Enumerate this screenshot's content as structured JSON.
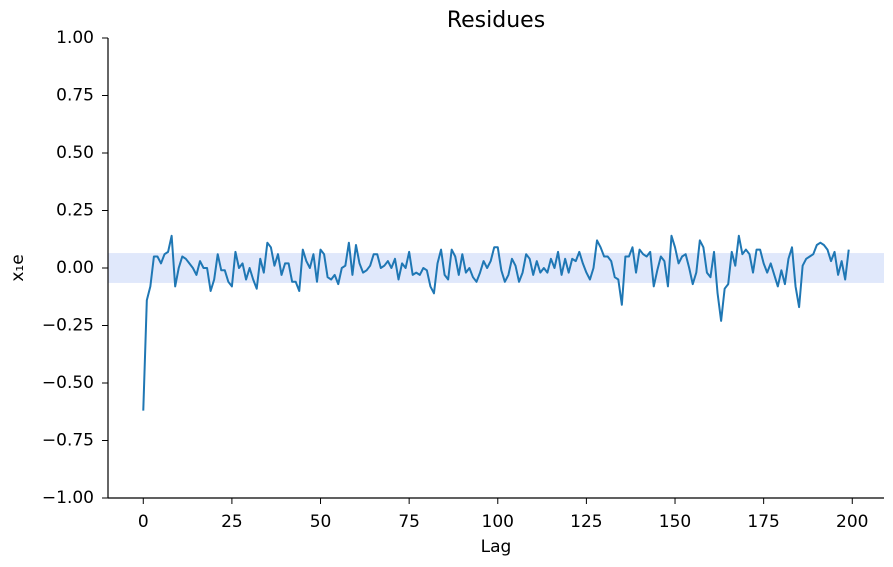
{
  "chart_data": {
    "type": "line",
    "title": "Residues",
    "xlabel": "Lag",
    "ylabel": "x₁e",
    "color": "#1f77b4",
    "band": [
      -0.065,
      0.065
    ],
    "band_color": "#e0e8fb",
    "xlim": [
      -9.95,
      208.95
    ],
    "ylim": [
      -1,
      1
    ],
    "xticks": [
      0,
      25,
      50,
      75,
      100,
      125,
      150,
      175,
      200
    ],
    "yticks": [
      {
        "value": -1,
        "label": "−1.00"
      },
      {
        "value": -0.75,
        "label": "−0.75"
      },
      {
        "value": -0.5,
        "label": "−0.50"
      },
      {
        "value": -0.25,
        "label": "−0.25"
      },
      {
        "value": 0,
        "label": "0.00"
      },
      {
        "value": 0.25,
        "label": "0.25"
      },
      {
        "value": 0.5,
        "label": "0.50"
      },
      {
        "value": 0.75,
        "label": "0.75"
      },
      {
        "value": 1,
        "label": "1.00"
      }
    ],
    "x": [
      0,
      1,
      2,
      3,
      4,
      5,
      6,
      7,
      8,
      9,
      10,
      11,
      12,
      13,
      14,
      15,
      16,
      17,
      18,
      19,
      20,
      21,
      22,
      23,
      24,
      25,
      26,
      27,
      28,
      29,
      30,
      31,
      32,
      33,
      34,
      35,
      36,
      37,
      38,
      39,
      40,
      41,
      42,
      43,
      44,
      45,
      46,
      47,
      48,
      49,
      50,
      51,
      52,
      53,
      54,
      55,
      56,
      57,
      58,
      59,
      60,
      61,
      62,
      63,
      64,
      65,
      66,
      67,
      68,
      69,
      70,
      71,
      72,
      73,
      74,
      75,
      76,
      77,
      78,
      79,
      80,
      81,
      82,
      83,
      84,
      85,
      86,
      87,
      88,
      89,
      90,
      91,
      92,
      93,
      94,
      95,
      96,
      97,
      98,
      99,
      100,
      101,
      102,
      103,
      104,
      105,
      106,
      107,
      108,
      109,
      110,
      111,
      112,
      113,
      114,
      115,
      116,
      117,
      118,
      119,
      120,
      121,
      122,
      123,
      124,
      125,
      126,
      127,
      128,
      129,
      130,
      131,
      132,
      133,
      134,
      135,
      136,
      137,
      138,
      139,
      140,
      141,
      142,
      143,
      144,
      145,
      146,
      147,
      148,
      149,
      150,
      151,
      152,
      153,
      154,
      155,
      156,
      157,
      158,
      159,
      160,
      161,
      162,
      163,
      164,
      165,
      166,
      167,
      168,
      169,
      170,
      171,
      172,
      173,
      174,
      175,
      176,
      177,
      178,
      179,
      180,
      181,
      182,
      183,
      184,
      185,
      186,
      187,
      188,
      189,
      190,
      191,
      192,
      193,
      194,
      195,
      196,
      197,
      198,
      199
    ],
    "values": [
      -0.62,
      -0.14,
      -0.08,
      0.05,
      0.05,
      0.02,
      0.06,
      0.07,
      0.14,
      -0.08,
      0.0,
      0.05,
      0.04,
      0.02,
      0.0,
      -0.03,
      0.03,
      0.0,
      0.0,
      -0.1,
      -0.05,
      0.06,
      -0.01,
      -0.01,
      -0.06,
      -0.08,
      0.07,
      0.0,
      0.02,
      -0.05,
      0.0,
      -0.05,
      -0.09,
      0.04,
      -0.02,
      0.11,
      0.09,
      0.01,
      0.06,
      -0.03,
      0.02,
      0.02,
      -0.06,
      -0.06,
      -0.1,
      0.08,
      0.03,
      0.0,
      0.06,
      -0.06,
      0.08,
      0.06,
      -0.04,
      -0.05,
      -0.03,
      -0.07,
      0.0,
      0.01,
      0.11,
      -0.03,
      0.1,
      0.02,
      -0.02,
      -0.01,
      0.01,
      0.06,
      0.06,
      0.0,
      0.01,
      0.03,
      0.0,
      0.04,
      -0.05,
      0.02,
      0.0,
      0.07,
      -0.03,
      -0.02,
      -0.03,
      0.0,
      -0.01,
      -0.08,
      -0.11,
      0.02,
      0.08,
      -0.03,
      -0.05,
      0.08,
      0.05,
      -0.03,
      0.06,
      -0.02,
      0.0,
      -0.04,
      -0.06,
      -0.02,
      0.03,
      0.0,
      0.03,
      0.09,
      0.09,
      -0.01,
      -0.06,
      -0.03,
      0.04,
      0.01,
      -0.06,
      -0.02,
      0.06,
      0.04,
      -0.03,
      0.03,
      -0.02,
      0.0,
      -0.02,
      0.04,
      0.0,
      0.07,
      -0.03,
      0.04,
      -0.02,
      0.04,
      0.03,
      0.07,
      0.02,
      -0.02,
      -0.05,
      0.0,
      0.12,
      0.09,
      0.05,
      0.05,
      0.03,
      -0.04,
      -0.05,
      -0.16,
      0.05,
      0.05,
      0.09,
      -0.02,
      0.08,
      0.06,
      0.05,
      0.07,
      -0.08,
      -0.01,
      0.05,
      0.03,
      -0.08,
      0.14,
      0.09,
      0.02,
      0.05,
      0.06,
      0.0,
      -0.07,
      -0.02,
      0.12,
      0.09,
      -0.02,
      -0.04,
      0.07,
      -0.11,
      -0.23,
      -0.09,
      -0.07,
      0.07,
      0.01,
      0.14,
      0.06,
      0.08,
      0.06,
      -0.02,
      0.08,
      0.08,
      0.02,
      -0.02,
      0.02,
      -0.03,
      -0.08,
      -0.01,
      -0.07,
      0.04,
      0.09,
      -0.08,
      -0.17,
      0.01,
      0.04,
      0.05,
      0.06,
      0.1,
      0.11,
      0.1,
      0.08,
      0.03,
      0.07,
      -0.03,
      0.03,
      -0.05,
      0.08
    ]
  }
}
